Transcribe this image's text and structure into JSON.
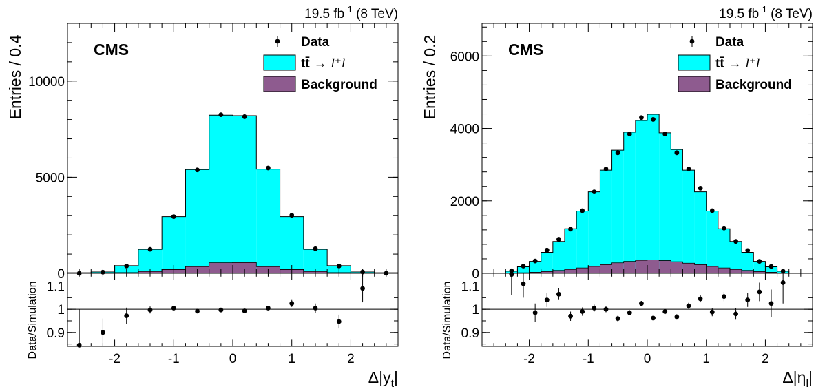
{
  "chart_data": [
    {
      "type": "bar",
      "subtype": "stacked-histogram-with-ratio",
      "experiment_label": "CMS",
      "lumi_label": "19.5 fb",
      "lumi_unit_exponent": "-1",
      "lumi_energy": "(8 TeV)",
      "ylabel": "Entries / 0.4",
      "xlabel_prefix": "Δ|y",
      "xlabel_subscript": "t",
      "xlabel_suffix": "|",
      "ratio_ylabel": "Data/Simulation",
      "xlim": [
        -2.8,
        2.8
      ],
      "ylim": [
        0,
        13000
      ],
      "ratio_ylim": [
        0.84,
        1.155
      ],
      "xticks": [
        "-2",
        "-1",
        "0",
        "1",
        "2"
      ],
      "yticks": [
        "0",
        "5000",
        "10000"
      ],
      "ratio_yticks": [
        "0.9",
        "1",
        "1.1"
      ],
      "bin_edges": [
        -2.8,
        -2.4,
        -2.0,
        -1.6,
        -1.2,
        -0.8,
        -0.4,
        0.0,
        0.4,
        0.8,
        1.2,
        1.6,
        2.0,
        2.4,
        2.8
      ],
      "legend": {
        "position": "top-right",
        "data": "Data",
        "signal_prefix": "tt̄",
        "signal_arrow": "→",
        "signal_decay": "l⁺l⁻",
        "background": "Background"
      },
      "series": [
        {
          "name": "Background",
          "color": "#8e5b8f",
          "values": [
            10,
            20,
            40,
            100,
            200,
            350,
            550,
            560,
            350,
            200,
            100,
            40,
            20,
            10
          ]
        },
        {
          "name": "tt̄ → l⁺l⁻",
          "color": "#00ffff",
          "stacked_total": [
            30,
            70,
            400,
            1250,
            2950,
            5400,
            8230,
            8200,
            5420,
            2950,
            1250,
            400,
            70,
            30
          ]
        }
      ],
      "data_points": {
        "x": [
          -2.6,
          -2.2,
          -1.8,
          -1.4,
          -1.0,
          -0.6,
          -0.2,
          0.2,
          0.6,
          1.0,
          1.4,
          1.8,
          2.2,
          2.6
        ],
        "y": [
          0,
          60,
          380,
          1250,
          2950,
          5380,
          8250,
          8150,
          5480,
          3020,
          1280,
          380,
          70,
          5
        ]
      },
      "ratio_points": {
        "x": [
          -2.6,
          -2.2,
          -1.8,
          -1.4,
          -1.0,
          -0.6,
          -0.2,
          0.2,
          0.6,
          1.0,
          1.4,
          1.8,
          2.2
        ],
        "y": [
          0.845,
          0.9,
          0.972,
          0.997,
          1.005,
          0.992,
          0.997,
          0.993,
          1.005,
          1.025,
          1.005,
          0.947,
          1.09
        ],
        "err": [
          0.155,
          0.06,
          0.035,
          0.015,
          0.01,
          0.008,
          0.006,
          0.006,
          0.008,
          0.015,
          0.02,
          0.03,
          0.06
        ]
      }
    },
    {
      "type": "bar",
      "subtype": "stacked-histogram-with-ratio",
      "experiment_label": "CMS",
      "lumi_label": "19.5 fb",
      "lumi_unit_exponent": "-1",
      "lumi_energy": "(8 TeV)",
      "ylabel": "Entries / 0.2",
      "xlabel_prefix": "Δ|η",
      "xlabel_subscript": "l",
      "xlabel_suffix": "|",
      "ratio_ylabel": "Data/Simulation",
      "xlim": [
        -2.8,
        2.8
      ],
      "ylim": [
        0,
        6900
      ],
      "ratio_ylim": [
        0.84,
        1.155
      ],
      "xticks": [
        "-2",
        "-1",
        "0",
        "1",
        "2"
      ],
      "yticks": [
        "0",
        "2000",
        "4000",
        "6000"
      ],
      "ratio_yticks": [
        "0.9",
        "1",
        "1.1"
      ],
      "bin_edges": [
        -2.4,
        -2.2,
        -2.0,
        -1.8,
        -1.6,
        -1.4,
        -1.2,
        -1.0,
        -0.8,
        -0.6,
        -0.4,
        -0.2,
        0.0,
        0.2,
        0.4,
        0.6,
        0.8,
        1.0,
        1.2,
        1.4,
        1.6,
        1.8,
        2.0,
        2.2,
        2.4
      ],
      "legend": {
        "position": "top-right",
        "data": "Data",
        "signal_prefix": "tt̄",
        "signal_arrow": "→",
        "signal_decay": "l⁺l⁻",
        "background": "Background"
      },
      "series": [
        {
          "name": "Background",
          "color": "#8e5b8f",
          "values": [
            5,
            15,
            30,
            50,
            80,
            110,
            150,
            190,
            240,
            290,
            330,
            360,
            370,
            350,
            320,
            280,
            240,
            190,
            150,
            110,
            80,
            50,
            30,
            10
          ]
        },
        {
          "name": "tt̄ → l⁺l⁻",
          "color": "#00ffff",
          "stacked_total": [
            60,
            180,
            330,
            580,
            880,
            1230,
            1720,
            2250,
            2850,
            3400,
            3900,
            4220,
            4390,
            3880,
            3420,
            2850,
            2250,
            1720,
            1230,
            880,
            580,
            330,
            180,
            60
          ]
        }
      ],
      "data_points": {
        "x": [
          -2.3,
          -2.1,
          -1.9,
          -1.7,
          -1.5,
          -1.3,
          -1.1,
          -0.9,
          -0.7,
          -0.5,
          -0.3,
          -0.1,
          0.1,
          0.3,
          0.5,
          0.7,
          0.9,
          1.1,
          1.3,
          1.5,
          1.7,
          1.9,
          2.1,
          2.3
        ],
        "y": [
          70,
          200,
          340,
          640,
          940,
          1220,
          1730,
          2250,
          2880,
          3330,
          3850,
          4300,
          4250,
          3850,
          3330,
          2880,
          2350,
          1730,
          1250,
          880,
          630,
          330,
          190,
          60
        ]
      },
      "ratio_points": {
        "x": [
          -2.3,
          -2.1,
          -1.9,
          -1.7,
          -1.5,
          -1.3,
          -1.1,
          -0.9,
          -0.7,
          -0.5,
          -0.3,
          -0.1,
          0.1,
          0.3,
          0.5,
          0.7,
          0.9,
          1.1,
          1.3,
          1.5,
          1.7,
          1.9,
          2.1,
          2.3
        ],
        "y": [
          1.15,
          1.11,
          0.985,
          1.04,
          1.065,
          0.97,
          0.99,
          1.005,
          1.0,
          0.96,
          0.985,
          1.025,
          0.962,
          0.99,
          0.967,
          1.015,
          1.045,
          0.988,
          1.055,
          0.98,
          1.04,
          1.075,
          1.025,
          1.115
        ],
        "err": [
          0.09,
          0.06,
          0.04,
          0.03,
          0.025,
          0.02,
          0.018,
          0.015,
          0.013,
          0.012,
          0.011,
          0.011,
          0.011,
          0.011,
          0.012,
          0.013,
          0.015,
          0.018,
          0.02,
          0.025,
          0.03,
          0.04,
          0.06,
          0.09
        ]
      }
    }
  ]
}
